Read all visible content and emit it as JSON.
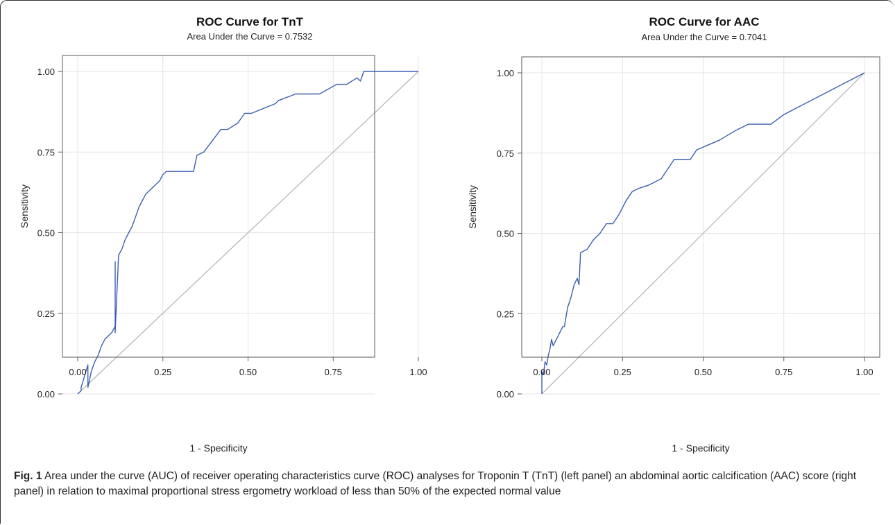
{
  "chart_data": [
    {
      "type": "line",
      "title": "ROC Curve for TnT",
      "subtitle": "Area Under the Curve = 0.7532",
      "xlabel": "1 - Specificity",
      "ylabel": "Sensitivity",
      "xlim": [
        0,
        1
      ],
      "ylim": [
        0,
        1
      ],
      "xticks": [
        "0.00",
        "0.25",
        "0.50",
        "0.75",
        "1.00"
      ],
      "yticks": [
        "0.00",
        "0.25",
        "0.50",
        "0.75",
        "1.00"
      ],
      "grid": true,
      "diagonal_reference": true,
      "line_color": "#3b5fb0",
      "series": [
        {
          "x": [
            0.0,
            0.01,
            0.01,
            0.03,
            0.03,
            0.04,
            0.05,
            0.06,
            0.07,
            0.08,
            0.1,
            0.11,
            0.11,
            0.11,
            0.12,
            0.13,
            0.14,
            0.15,
            0.16,
            0.17,
            0.18,
            0.19,
            0.2,
            0.21,
            0.24,
            0.25,
            0.26,
            0.27,
            0.34,
            0.35,
            0.37,
            0.42,
            0.44,
            0.47,
            0.49,
            0.51,
            0.58,
            0.59,
            0.64,
            0.71,
            0.76,
            0.79,
            0.82,
            0.83,
            0.84,
            1.0
          ],
          "y": [
            0.0,
            0.01,
            0.02,
            0.09,
            0.02,
            0.07,
            0.1,
            0.12,
            0.15,
            0.17,
            0.19,
            0.21,
            0.41,
            0.19,
            0.43,
            0.45,
            0.48,
            0.5,
            0.52,
            0.55,
            0.58,
            0.6,
            0.62,
            0.63,
            0.66,
            0.68,
            0.69,
            0.69,
            0.69,
            0.74,
            0.75,
            0.82,
            0.82,
            0.84,
            0.87,
            0.87,
            0.9,
            0.91,
            0.93,
            0.93,
            0.96,
            0.96,
            0.98,
            0.97,
            1.0,
            1.0
          ]
        }
      ]
    },
    {
      "type": "line",
      "title": "ROC Curve for AAC",
      "subtitle": "Area Under the Curve = 0.7041",
      "xlabel": "1 - Specificity",
      "ylabel": "Sensitivity",
      "xlim": [
        0,
        1
      ],
      "ylim": [
        0,
        1
      ],
      "xticks": [
        "0.00",
        "0.25",
        "0.50",
        "0.75",
        "1.00"
      ],
      "yticks": [
        "0.00",
        "0.25",
        "0.50",
        "0.75",
        "1.00"
      ],
      "grid": true,
      "diagonal_reference": true,
      "line_color": "#3b5fb0",
      "series": [
        {
          "x": [
            0.0,
            0.0,
            0.005,
            0.01,
            0.015,
            0.02,
            0.025,
            0.03,
            0.035,
            0.05,
            0.065,
            0.07,
            0.08,
            0.09,
            0.1,
            0.11,
            0.115,
            0.12,
            0.14,
            0.16,
            0.18,
            0.2,
            0.22,
            0.24,
            0.26,
            0.28,
            0.3,
            0.33,
            0.37,
            0.41,
            0.46,
            0.48,
            0.55,
            0.6,
            0.64,
            0.71,
            0.75,
            1.0
          ],
          "y": [
            0.0,
            0.07,
            0.06,
            0.1,
            0.09,
            0.12,
            0.14,
            0.17,
            0.15,
            0.18,
            0.21,
            0.21,
            0.27,
            0.3,
            0.34,
            0.36,
            0.34,
            0.44,
            0.45,
            0.48,
            0.5,
            0.53,
            0.53,
            0.56,
            0.6,
            0.63,
            0.64,
            0.65,
            0.67,
            0.73,
            0.73,
            0.76,
            0.79,
            0.82,
            0.84,
            0.84,
            0.87,
            1.0
          ]
        }
      ]
    }
  ],
  "caption": {
    "label": "Fig. 1",
    "text": "Area under the curve (AUC) of receiver operating characteristics curve (ROC) analyses for Troponin T (TnT) (left panel) an abdominal aortic calcification (AAC) score (right panel) in relation to maximal proportional stress ergometry workload of less than 50% of the expected normal value"
  }
}
